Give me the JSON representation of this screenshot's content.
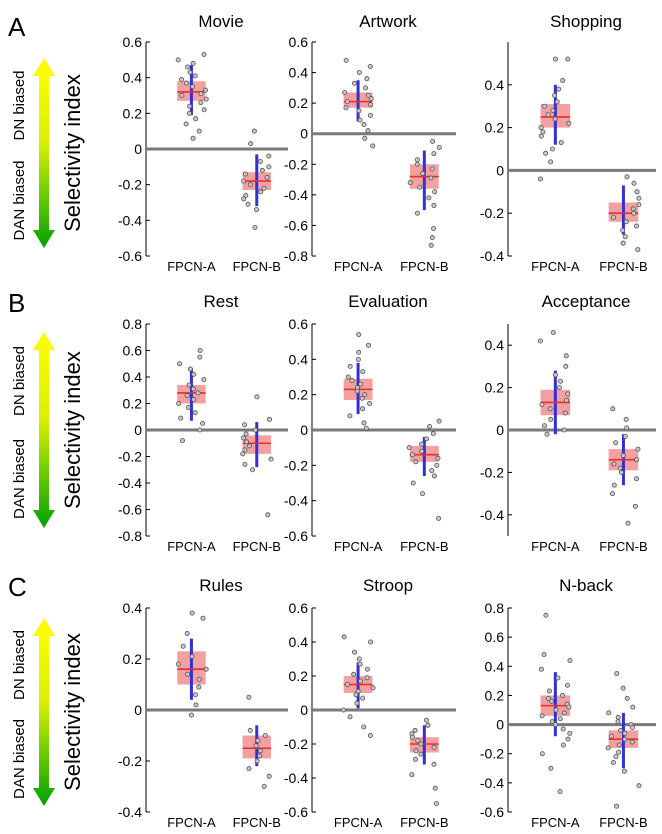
{
  "panels": [
    {
      "letter": "A",
      "side_top": "DN biased",
      "side_bottom": "DAN biased",
      "ylabel": "Selectivity index"
    },
    {
      "letter": "B",
      "side_top": "DN biased",
      "side_bottom": "DAN biased",
      "ylabel": "Selectivity index"
    },
    {
      "letter": "C",
      "side_top": "DN biased",
      "side_bottom": "DAN biased",
      "ylabel": "Selectivity index"
    }
  ],
  "colors": {
    "box_fill": "#f4a0a0",
    "median": "#e03030",
    "whisker": "#3030dd",
    "zero_line": "#7a7a7a",
    "points": "#555555",
    "arrow_top": "#ffff00",
    "arrow_bottom": "#00a000"
  },
  "chart_data": [
    {
      "type": "box",
      "title": "Movie",
      "categories": [
        "FPCN-A",
        "FPCN-B"
      ],
      "ylim": [
        -0.6,
        0.6
      ],
      "yticks": [
        -0.6,
        -0.4,
        -0.2,
        0,
        0.2,
        0.4,
        0.6
      ],
      "series": [
        {
          "category": "FPCN-A",
          "q1": 0.27,
          "median": 0.32,
          "q3": 0.38,
          "whisker_low": 0.19,
          "whisker_high": 0.47,
          "points": [
            0.53,
            0.5,
            0.48,
            0.46,
            0.43,
            0.41,
            0.39,
            0.37,
            0.35,
            0.33,
            0.31,
            0.3,
            0.28,
            0.26,
            0.24,
            0.22,
            0.2,
            0.17,
            0.14,
            0.1,
            0.06
          ]
        },
        {
          "category": "FPCN-B",
          "q1": -0.23,
          "median": -0.18,
          "q3": -0.13,
          "whisker_low": -0.32,
          "whisker_high": -0.03,
          "points": [
            0.1,
            0.03,
            -0.04,
            -0.07,
            -0.1,
            -0.12,
            -0.14,
            -0.16,
            -0.18,
            -0.2,
            -0.22,
            -0.24,
            -0.26,
            -0.28,
            -0.31,
            -0.34,
            -0.44
          ]
        }
      ]
    },
    {
      "type": "box",
      "title": "Artwork",
      "categories": [
        "FPCN-A",
        "FPCN-B"
      ],
      "ylim": [
        -0.8,
        0.6
      ],
      "yticks": [
        -0.8,
        -0.6,
        -0.4,
        -0.2,
        0,
        0.2,
        0.4,
        0.6
      ],
      "series": [
        {
          "category": "FPCN-A",
          "q1": 0.17,
          "median": 0.21,
          "q3": 0.27,
          "whisker_low": 0.08,
          "whisker_high": 0.35,
          "points": [
            0.48,
            0.44,
            0.4,
            0.36,
            0.33,
            0.3,
            0.27,
            0.25,
            0.23,
            0.21,
            0.19,
            0.17,
            0.15,
            0.12,
            0.09,
            0.06,
            0.02,
            -0.03,
            -0.08
          ]
        },
        {
          "category": "FPCN-B",
          "q1": -0.36,
          "median": -0.28,
          "q3": -0.2,
          "whisker_low": -0.5,
          "whisker_high": -0.11,
          "points": [
            -0.05,
            -0.09,
            -0.13,
            -0.17,
            -0.2,
            -0.23,
            -0.26,
            -0.29,
            -0.32,
            -0.35,
            -0.38,
            -0.42,
            -0.47,
            -0.52,
            -0.62,
            -0.68,
            -0.73
          ]
        }
      ]
    },
    {
      "type": "box",
      "title": "Shopping",
      "categories": [
        "FPCN-A",
        "FPCN-B"
      ],
      "ylim": [
        -0.4,
        0.6
      ],
      "yticks": [
        -0.4,
        -0.2,
        0,
        0.2,
        0.4
      ],
      "series": [
        {
          "category": "FPCN-A",
          "q1": 0.2,
          "median": 0.25,
          "q3": 0.31,
          "whisker_low": 0.12,
          "whisker_high": 0.4,
          "points": [
            0.52,
            0.52,
            0.42,
            0.38,
            0.35,
            0.32,
            0.3,
            0.28,
            0.26,
            0.24,
            0.22,
            0.2,
            0.18,
            0.16,
            0.13,
            0.1,
            0.08,
            0.04,
            -0.04
          ]
        },
        {
          "category": "FPCN-B",
          "q1": -0.24,
          "median": -0.2,
          "q3": -0.15,
          "whisker_low": -0.3,
          "whisker_high": -0.07,
          "points": [
            -0.03,
            -0.06,
            -0.1,
            -0.13,
            -0.16,
            -0.18,
            -0.2,
            -0.22,
            -0.24,
            -0.26,
            -0.28,
            -0.31,
            -0.34,
            -0.37
          ]
        }
      ]
    },
    {
      "type": "box",
      "title": "Rest",
      "categories": [
        "FPCN-A",
        "FPCN-B"
      ],
      "ylim": [
        -0.8,
        0.8
      ],
      "yticks": [
        -0.8,
        -0.6,
        -0.4,
        -0.2,
        0,
        0.2,
        0.4,
        0.6,
        0.8
      ],
      "series": [
        {
          "category": "FPCN-A",
          "q1": 0.2,
          "median": 0.28,
          "q3": 0.34,
          "whisker_low": 0.07,
          "whisker_high": 0.46,
          "points": [
            0.6,
            0.55,
            0.5,
            0.46,
            0.42,
            0.38,
            0.34,
            0.31,
            0.28,
            0.26,
            0.23,
            0.2,
            0.17,
            0.13,
            0.09,
            0.05,
            0.0,
            -0.08
          ]
        },
        {
          "category": "FPCN-B",
          "q1": -0.18,
          "median": -0.1,
          "q3": -0.04,
          "whisker_low": -0.28,
          "whisker_high": 0.06,
          "points": [
            0.25,
            0.08,
            0.04,
            0.0,
            -0.03,
            -0.06,
            -0.09,
            -0.12,
            -0.15,
            -0.18,
            -0.22,
            -0.26,
            -0.3,
            -0.64
          ]
        }
      ]
    },
    {
      "type": "box",
      "title": "Evaluation",
      "categories": [
        "FPCN-A",
        "FPCN-B"
      ],
      "ylim": [
        -0.6,
        0.6
      ],
      "yticks": [
        -0.6,
        -0.4,
        -0.2,
        0,
        0.2,
        0.4,
        0.6
      ],
      "series": [
        {
          "category": "FPCN-A",
          "q1": 0.17,
          "median": 0.23,
          "q3": 0.29,
          "whisker_low": 0.09,
          "whisker_high": 0.38,
          "points": [
            0.54,
            0.48,
            0.44,
            0.4,
            0.36,
            0.33,
            0.3,
            0.28,
            0.26,
            0.24,
            0.22,
            0.2,
            0.18,
            0.15,
            0.12,
            0.08,
            0.04,
            0.01
          ]
        },
        {
          "category": "FPCN-B",
          "q1": -0.18,
          "median": -0.14,
          "q3": -0.09,
          "whisker_low": -0.26,
          "whisker_high": -0.04,
          "points": [
            0.05,
            0.02,
            -0.02,
            -0.05,
            -0.08,
            -0.1,
            -0.12,
            -0.14,
            -0.16,
            -0.18,
            -0.2,
            -0.23,
            -0.26,
            -0.3,
            -0.36,
            -0.5
          ]
        }
      ]
    },
    {
      "type": "box",
      "title": "Acceptance",
      "categories": [
        "FPCN-A",
        "FPCN-B"
      ],
      "ylim": [
        -0.5,
        0.5
      ],
      "yticks": [
        -0.4,
        -0.2,
        0,
        0.2,
        0.4
      ],
      "series": [
        {
          "category": "FPCN-A",
          "q1": 0.07,
          "median": 0.13,
          "q3": 0.19,
          "whisker_low": -0.02,
          "whisker_high": 0.28,
          "points": [
            0.46,
            0.42,
            0.35,
            0.3,
            0.26,
            0.23,
            0.2,
            0.17,
            0.14,
            0.12,
            0.1,
            0.08,
            0.05,
            0.02,
            0.0,
            -0.02
          ]
        },
        {
          "category": "FPCN-B",
          "q1": -0.19,
          "median": -0.14,
          "q3": -0.09,
          "whisker_low": -0.26,
          "whisker_high": -0.02,
          "points": [
            0.1,
            0.05,
            0.01,
            -0.03,
            -0.06,
            -0.09,
            -0.12,
            -0.14,
            -0.16,
            -0.18,
            -0.2,
            -0.23,
            -0.26,
            -0.3,
            -0.36,
            -0.44
          ]
        }
      ]
    },
    {
      "type": "box",
      "title": "Rules",
      "categories": [
        "FPCN-A",
        "FPCN-B"
      ],
      "ylim": [
        -0.4,
        0.4
      ],
      "yticks": [
        -0.4,
        -0.2,
        0,
        0.2,
        0.4
      ],
      "series": [
        {
          "category": "FPCN-A",
          "q1": 0.1,
          "median": 0.16,
          "q3": 0.23,
          "whisker_low": 0.04,
          "whisker_high": 0.28,
          "points": [
            0.38,
            0.36,
            0.3,
            0.25,
            0.21,
            0.18,
            0.16,
            0.14,
            0.12,
            0.09,
            0.06,
            0.02,
            -0.02
          ]
        },
        {
          "category": "FPCN-B",
          "q1": -0.19,
          "median": -0.15,
          "q3": -0.1,
          "whisker_low": -0.22,
          "whisker_high": -0.06,
          "points": [
            0.05,
            -0.08,
            -0.1,
            -0.12,
            -0.14,
            -0.16,
            -0.18,
            -0.2,
            -0.23,
            -0.26,
            -0.3
          ]
        }
      ]
    },
    {
      "type": "box",
      "title": "Stroop",
      "categories": [
        "FPCN-A",
        "FPCN-B"
      ],
      "ylim": [
        -0.6,
        0.6
      ],
      "yticks": [
        -0.6,
        -0.4,
        -0.2,
        0,
        0.2,
        0.4,
        0.6
      ],
      "series": [
        {
          "category": "FPCN-A",
          "q1": 0.1,
          "median": 0.15,
          "q3": 0.2,
          "whisker_low": 0.01,
          "whisker_high": 0.28,
          "points": [
            0.43,
            0.4,
            0.34,
            0.3,
            0.27,
            0.24,
            0.21,
            0.19,
            0.17,
            0.15,
            0.13,
            0.11,
            0.09,
            0.07,
            0.04,
            0.0,
            -0.04,
            -0.1,
            -0.15
          ]
        },
        {
          "category": "FPCN-B",
          "q1": -0.25,
          "median": -0.2,
          "q3": -0.16,
          "whisker_low": -0.32,
          "whisker_high": -0.09,
          "points": [
            -0.06,
            -0.09,
            -0.12,
            -0.14,
            -0.16,
            -0.18,
            -0.2,
            -0.22,
            -0.24,
            -0.26,
            -0.29,
            -0.32,
            -0.38,
            -0.46,
            -0.55
          ]
        }
      ]
    },
    {
      "type": "box",
      "title": "N-back",
      "categories": [
        "FPCN-A",
        "FPCN-B"
      ],
      "ylim": [
        -0.6,
        0.8
      ],
      "yticks": [
        -0.6,
        -0.4,
        -0.2,
        0,
        0.2,
        0.4,
        0.6,
        0.8
      ],
      "series": [
        {
          "category": "FPCN-A",
          "q1": 0.06,
          "median": 0.13,
          "q3": 0.2,
          "whisker_low": -0.08,
          "whisker_high": 0.36,
          "points": [
            0.75,
            0.48,
            0.44,
            0.38,
            0.32,
            0.27,
            0.23,
            0.2,
            0.18,
            0.16,
            0.14,
            0.12,
            0.1,
            0.08,
            0.06,
            0.04,
            0.02,
            0.0,
            -0.03,
            -0.06,
            -0.1,
            -0.14,
            -0.2,
            -0.3,
            -0.46
          ]
        },
        {
          "category": "FPCN-B",
          "q1": -0.16,
          "median": -0.1,
          "q3": -0.04,
          "whisker_low": -0.3,
          "whisker_high": 0.08,
          "points": [
            0.35,
            0.25,
            0.18,
            0.12,
            0.08,
            0.05,
            0.02,
            0.0,
            -0.02,
            -0.04,
            -0.06,
            -0.08,
            -0.1,
            -0.12,
            -0.14,
            -0.16,
            -0.19,
            -0.22,
            -0.26,
            -0.32,
            -0.42,
            -0.56
          ]
        }
      ]
    }
  ]
}
